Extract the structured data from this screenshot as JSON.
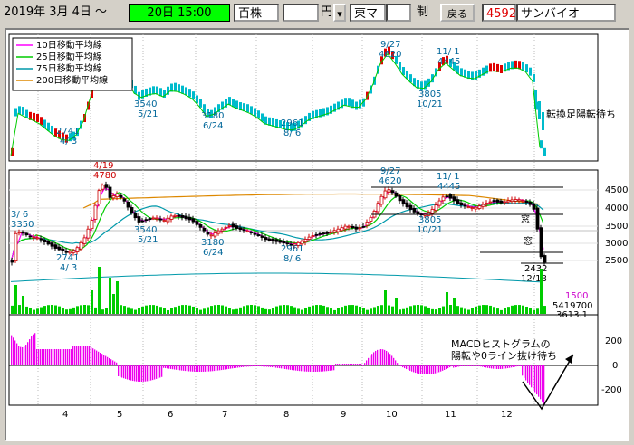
{
  "toolbar": {
    "date_label": "2019年  3月  4日 ～",
    "period_label": "20日 15:00",
    "unit_shares": "百株",
    "currency_value": "",
    "currency_unit": "円",
    "market_label": "東マ",
    "market_value": "",
    "system_label": "制",
    "back_button": "戻る",
    "stock_code": "4592",
    "stock_name": "サンバイオ"
  },
  "legend": {
    "items": [
      {
        "label": "10日移動平均線",
        "color": "#ff00ff"
      },
      {
        "label": "25日移動平均線",
        "color": "#00cc00"
      },
      {
        "label": "75日移動平均線",
        "color": "#0099aa"
      },
      {
        "label": "200日移動平均線",
        "color": "#dd8800"
      }
    ]
  },
  "chart_data": {
    "type": "candlestick_with_volume_and_macd",
    "x_month_labels": [
      "4",
      "5",
      "6",
      "7",
      "8",
      "9",
      "10",
      "11",
      "12"
    ],
    "price_axis_ticks": [
      2500,
      3000,
      3500,
      4000,
      4500
    ],
    "macd_axis_ticks": [
      200,
      0,
      -200
    ],
    "price_annotations": [
      {
        "label": "3/ 6",
        "value": 3350
      },
      {
        "label": "3350",
        "value": 3350
      },
      {
        "label": "2741",
        "value": 2741
      },
      {
        "label": "4/ 3",
        "value": 2741
      },
      {
        "label": "4/19",
        "value": 4780
      },
      {
        "label": "4780",
        "value": 4780
      },
      {
        "label": "3540",
        "value": 3540
      },
      {
        "label": "5/21",
        "value": 3540
      },
      {
        "label": "3180",
        "value": 3180
      },
      {
        "label": "6/24",
        "value": 3180
      },
      {
        "label": "2961",
        "value": 2961
      },
      {
        "label": "8/ 6",
        "value": 2961
      },
      {
        "label": "9/27",
        "value": 4620
      },
      {
        "label": "4620",
        "value": 4620
      },
      {
        "label": "11/ 1",
        "value": 4445
      },
      {
        "label": "4445",
        "value": 4445
      },
      {
        "label": "3805",
        "value": 3805
      },
      {
        "label": "10/21",
        "value": 3805
      },
      {
        "label": "2432",
        "value": 2432
      },
      {
        "label": "12/18",
        "value": 2432
      }
    ],
    "window_label": "窓",
    "inset_labels": [
      {
        "label": "2741",
        "value": 2741
      },
      {
        "label": "4/ 3",
        "value": 2741
      },
      {
        "label": "3540",
        "value": 3540
      },
      {
        "label": "5/21",
        "value": 3540
      },
      {
        "label": "3180",
        "value": 3180
      },
      {
        "label": "6/24",
        "value": 3180
      },
      {
        "label": "2961",
        "value": 2961
      },
      {
        "label": "8/ 6",
        "value": 2961
      },
      {
        "label": "9/27",
        "value": 4620
      },
      {
        "label": "4620",
        "value": 4620
      },
      {
        "label": "11/ 1",
        "value": 4445
      },
      {
        "label": "4445",
        "value": 4445
      },
      {
        "label": "3805",
        "value": 3805
      },
      {
        "label": "10/21",
        "value": 3805
      }
    ],
    "inset_note": "転換足陽転待ち",
    "volume_labels": [
      "1500",
      "5419700",
      "3613.1"
    ],
    "macd_note_line1": "MACDヒストグラムの",
    "macd_note_line2": "陽転や0ライン抜け待ち",
    "price_range": [
      2300,
      5000
    ],
    "macd_range": [
      -300,
      300
    ]
  }
}
